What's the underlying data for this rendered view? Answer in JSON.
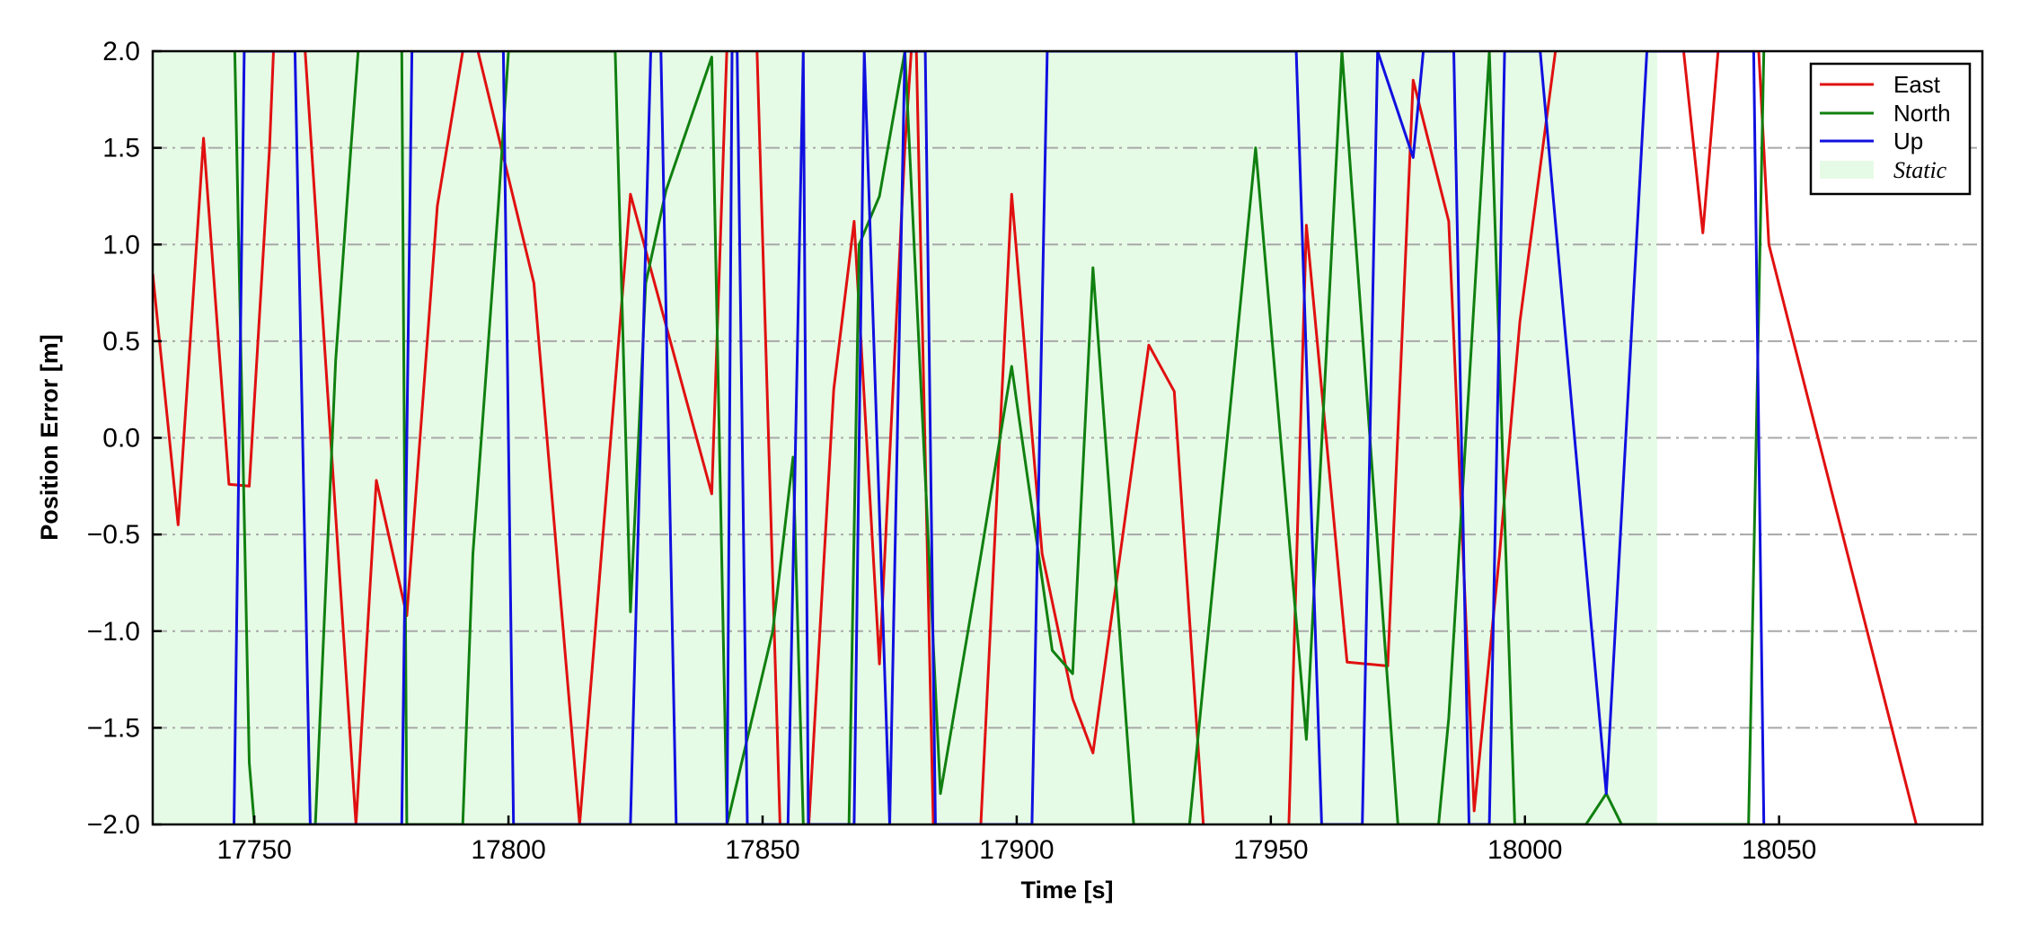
{
  "chart_data": {
    "type": "line",
    "title": "",
    "xlabel": "Time [s]",
    "ylabel": "Position Error [m]",
    "xlim": [
      17730,
      18090
    ],
    "ylim": [
      -2.0,
      2.0
    ],
    "x_ticks": [
      17750,
      17800,
      17850,
      17900,
      17950,
      18000,
      18050
    ],
    "y_ticks": [
      2.0,
      1.5,
      1.0,
      0.5,
      0.0,
      -0.5,
      -1.0,
      -1.5,
      -2.0
    ],
    "x_tick_labels": [
      "17750",
      "17800",
      "17850",
      "17900",
      "17950",
      "18000",
      "18050"
    ],
    "y_tick_labels": [
      "2.0",
      "1.5",
      "1.0",
      "0.5",
      "0.0",
      "−0.5",
      "−1.0",
      "−1.5",
      "−2.0"
    ],
    "grid": "horizontal dash-dot",
    "legend_position": "top-right",
    "static_region": {
      "label": "Static",
      "x_start": 17730,
      "x_end": 18026,
      "color": "#e6fbe6"
    },
    "series": [
      {
        "name": "East",
        "color": "#e01010",
        "points": [
          [
            17730,
            0.85
          ],
          [
            17735,
            -0.45
          ],
          [
            17740,
            1.55
          ],
          [
            17745,
            -0.24
          ],
          [
            17749,
            -0.25
          ],
          [
            17753,
            1.5
          ],
          [
            17755,
            2.8
          ],
          [
            17758,
            2.8
          ],
          [
            17764,
            0.4
          ],
          [
            17770,
            -2.0
          ],
          [
            17774,
            -0.22
          ],
          [
            17780,
            -0.92
          ],
          [
            17786,
            1.2
          ],
          [
            17791,
            2.0
          ],
          [
            17794,
            2.0
          ],
          [
            17805,
            0.8
          ],
          [
            17814,
            -2.0
          ],
          [
            17824,
            1.26
          ],
          [
            17840,
            -0.29
          ],
          [
            17844,
            2.8
          ],
          [
            17848,
            2.8
          ],
          [
            17854,
            -2.5
          ],
          [
            17858,
            -2.5
          ],
          [
            17864,
            0.25
          ],
          [
            17868,
            1.12
          ],
          [
            17873,
            -1.17
          ],
          [
            17878,
            1.5
          ],
          [
            17880,
            2.3
          ],
          [
            17884,
            -2.5
          ],
          [
            17892,
            -2.5
          ],
          [
            17899,
            1.26
          ],
          [
            17905,
            -0.6
          ],
          [
            17911,
            -1.35
          ],
          [
            17915,
            -1.63
          ],
          [
            17926,
            0.48
          ],
          [
            17931,
            0.24
          ],
          [
            17938,
            -2.5
          ],
          [
            17953,
            -2.5
          ],
          [
            17957,
            1.1
          ],
          [
            17965,
            -1.16
          ],
          [
            17973,
            -1.18
          ],
          [
            17978,
            1.85
          ],
          [
            17985,
            1.12
          ],
          [
            17990,
            -1.93
          ],
          [
            17995,
            -0.6
          ],
          [
            17999,
            0.6
          ],
          [
            18006,
            2.0
          ],
          [
            18009,
            2.8
          ],
          [
            18028,
            2.8
          ],
          [
            18035,
            1.06
          ],
          [
            18038,
            2.0
          ],
          [
            18046,
            2.0
          ],
          [
            18048,
            1.0
          ],
          [
            18077,
            -2.0
          ]
        ]
      },
      {
        "name": "North",
        "color": "#108010",
        "points": [
          [
            17746,
            2.2
          ],
          [
            17749,
            -1.68
          ],
          [
            17750,
            -2.0
          ],
          [
            17762,
            -2.0
          ],
          [
            17766,
            0.4
          ],
          [
            17769,
            1.5
          ],
          [
            17771,
            2.2
          ],
          [
            17779,
            2.0
          ],
          [
            17780,
            -2.0
          ],
          [
            17791,
            -2.0
          ],
          [
            17793,
            -0.6
          ],
          [
            17798,
            1.2
          ],
          [
            17800,
            2.0
          ],
          [
            17821,
            2.0
          ],
          [
            17824,
            -0.9
          ],
          [
            17827,
            0.8
          ],
          [
            17831,
            1.28
          ],
          [
            17840,
            1.97
          ],
          [
            17843,
            -2.0
          ],
          [
            17852,
            -1.0
          ],
          [
            17856,
            -0.1
          ],
          [
            17858,
            -2.0
          ],
          [
            17867,
            -2.0
          ],
          [
            17869,
            1.0
          ],
          [
            17873,
            1.25
          ],
          [
            17878,
            2.0
          ],
          [
            17885,
            -1.84
          ],
          [
            17893,
            -0.6
          ],
          [
            17899,
            0.37
          ],
          [
            17907,
            -1.1
          ],
          [
            17911,
            -1.22
          ],
          [
            17915,
            0.88
          ],
          [
            17923,
            -2.0
          ],
          [
            17934,
            -2.0
          ],
          [
            17947,
            1.5
          ],
          [
            17957,
            -1.56
          ],
          [
            17964,
            2.0
          ],
          [
            17975,
            -2.0
          ],
          [
            17983,
            -2.0
          ],
          [
            17985,
            -1.45
          ],
          [
            17993,
            2.0
          ],
          [
            17998,
            -2.0
          ],
          [
            18012,
            -2.0
          ],
          [
            18016,
            -1.84
          ],
          [
            18019,
            -2.0
          ],
          [
            18044,
            -2.0
          ],
          [
            18047,
            2.0
          ]
        ]
      },
      {
        "name": "Up",
        "color": "#1010e0",
        "points": [
          [
            17746,
            -2.0
          ],
          [
            17748,
            2.0
          ],
          [
            17758,
            2.0
          ],
          [
            17761,
            -2.0
          ],
          [
            17779,
            -2.0
          ],
          [
            17781,
            2.0
          ],
          [
            17799,
            2.0
          ],
          [
            17801,
            -2.0
          ],
          [
            17824,
            -2.0
          ],
          [
            17828,
            2.0
          ],
          [
            17830,
            2.0
          ],
          [
            17833,
            -2.0
          ],
          [
            17843,
            -2.0
          ],
          [
            17844,
            2.0
          ],
          [
            17845,
            2.0
          ],
          [
            17847,
            -2.0
          ],
          [
            17855,
            -2.0
          ],
          [
            17858,
            2.0
          ],
          [
            17859,
            -2.0
          ],
          [
            17868,
            -2.0
          ],
          [
            17870,
            2.0
          ],
          [
            17875,
            -2.0
          ],
          [
            17878,
            2.0
          ],
          [
            17882,
            2.0
          ],
          [
            17884,
            -2.0
          ],
          [
            17903,
            -2.0
          ],
          [
            17906,
            2.0
          ],
          [
            17955,
            2.0
          ],
          [
            17960,
            -2.0
          ],
          [
            17968,
            -2.0
          ],
          [
            17971,
            2.0
          ],
          [
            17978,
            1.45
          ],
          [
            17980,
            2.0
          ],
          [
            17986,
            2.0
          ],
          [
            17989,
            -2.0
          ],
          [
            17993,
            -2.0
          ],
          [
            17996,
            2.0
          ],
          [
            18003,
            2.0
          ],
          [
            18016,
            -1.84
          ],
          [
            18024,
            2.0
          ],
          [
            18045,
            2.0
          ],
          [
            18047,
            -2.0
          ]
        ]
      }
    ]
  }
}
